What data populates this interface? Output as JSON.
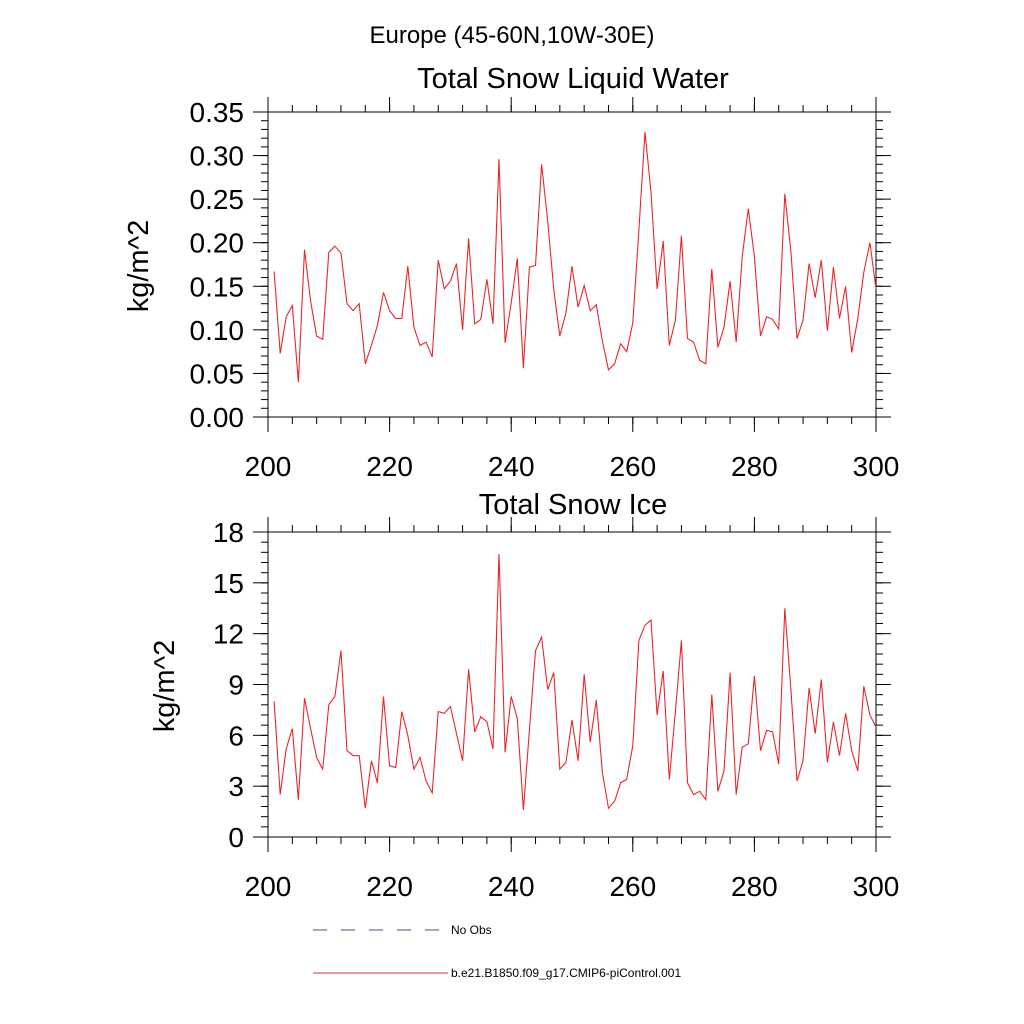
{
  "figure_title": "Europe (45-60N,10W-30E)",
  "legend": {
    "items": [
      {
        "label": "No Obs",
        "style": "dashed",
        "color": "#45507a"
      },
      {
        "label": "b.e21.B1850.f09_g17.CMIP6-piControl.001",
        "style": "solid",
        "color": "#e8262a"
      }
    ]
  },
  "chart_data": [
    {
      "type": "line",
      "title": "Total Snow Liquid Water",
      "xlabel": "",
      "ylabel": "kg/m^2",
      "xlim": [
        200,
        300
      ],
      "ylim": [
        0,
        0.35
      ],
      "xticks": [
        200,
        220,
        240,
        260,
        280,
        300
      ],
      "xtick_labels": [
        "200",
        "220",
        "240",
        "260",
        "280",
        "300"
      ],
      "yticks": [
        0,
        0.05,
        0.1,
        0.15,
        0.2,
        0.25,
        0.3,
        0.35
      ],
      "ytick_labels": [
        "0.00",
        "0.05",
        "0.10",
        "0.15",
        "0.20",
        "0.25",
        "0.30",
        "0.35"
      ],
      "series": [
        {
          "color": "#e8262a",
          "x": [
            201,
            202,
            203,
            204,
            205,
            206,
            207,
            208,
            209,
            210,
            211,
            212,
            213,
            214,
            215,
            216,
            217,
            218,
            219,
            220,
            221,
            222,
            223,
            224,
            225,
            226,
            227,
            228,
            229,
            230,
            231,
            232,
            233,
            234,
            235,
            236,
            237,
            238,
            239,
            240,
            241,
            242,
            243,
            244,
            245,
            246,
            247,
            248,
            249,
            250,
            251,
            252,
            253,
            254,
            255,
            256,
            257,
            258,
            259,
            260,
            261,
            262,
            263,
            264,
            265,
            266,
            267,
            268,
            269,
            270,
            271,
            272,
            273,
            274,
            275,
            276,
            277,
            278,
            279,
            280,
            281,
            282,
            283,
            284,
            285,
            286,
            287,
            288,
            289,
            290,
            291,
            292,
            293,
            294,
            295,
            296,
            297,
            298,
            299,
            300
          ],
          "y": [
            0.167,
            0.073,
            0.115,
            0.128,
            0.04,
            0.192,
            0.133,
            0.093,
            0.089,
            0.189,
            0.196,
            0.188,
            0.13,
            0.122,
            0.13,
            0.061,
            0.082,
            0.105,
            0.143,
            0.122,
            0.113,
            0.113,
            0.173,
            0.103,
            0.082,
            0.086,
            0.069,
            0.18,
            0.147,
            0.156,
            0.176,
            0.1,
            0.205,
            0.107,
            0.112,
            0.158,
            0.107,
            0.296,
            0.085,
            0.131,
            0.182,
            0.056,
            0.172,
            0.174,
            0.29,
            0.225,
            0.146,
            0.093,
            0.119,
            0.173,
            0.126,
            0.151,
            0.122,
            0.129,
            0.087,
            0.054,
            0.061,
            0.084,
            0.075,
            0.108,
            0.215,
            0.327,
            0.258,
            0.147,
            0.202,
            0.082,
            0.111,
            0.208,
            0.09,
            0.086,
            0.065,
            0.061,
            0.17,
            0.08,
            0.103,
            0.156,
            0.086,
            0.184,
            0.239,
            0.184,
            0.093,
            0.115,
            0.112,
            0.101,
            0.256,
            0.19,
            0.09,
            0.111,
            0.176,
            0.137,
            0.18,
            0.099,
            0.172,
            0.113,
            0.15,
            0.074,
            0.113,
            0.166,
            0.2,
            0.147
          ]
        }
      ]
    },
    {
      "type": "line",
      "title": "Total Snow Ice",
      "xlabel": "",
      "ylabel": "kg/m^2",
      "xlim": [
        200,
        300
      ],
      "ylim": [
        0,
        18
      ],
      "xticks": [
        200,
        220,
        240,
        260,
        280,
        300
      ],
      "xtick_labels": [
        "200",
        "220",
        "240",
        "260",
        "280",
        "300"
      ],
      "yticks": [
        0,
        3,
        6,
        9,
        12,
        15,
        18
      ],
      "ytick_labels": [
        "0",
        "3",
        "6",
        "9",
        "12",
        "15",
        "18"
      ],
      "series": [
        {
          "color": "#e8262a",
          "x": [
            201,
            202,
            203,
            204,
            205,
            206,
            207,
            208,
            209,
            210,
            211,
            212,
            213,
            214,
            215,
            216,
            217,
            218,
            219,
            220,
            221,
            222,
            223,
            224,
            225,
            226,
            227,
            228,
            229,
            230,
            231,
            232,
            233,
            234,
            235,
            236,
            237,
            238,
            239,
            240,
            241,
            242,
            243,
            244,
            245,
            246,
            247,
            248,
            249,
            250,
            251,
            252,
            253,
            254,
            255,
            256,
            257,
            258,
            259,
            260,
            261,
            262,
            263,
            264,
            265,
            266,
            267,
            268,
            269,
            270,
            271,
            272,
            273,
            274,
            275,
            276,
            277,
            278,
            279,
            280,
            281,
            282,
            283,
            284,
            285,
            286,
            287,
            288,
            289,
            290,
            291,
            292,
            293,
            294,
            295,
            296,
            297,
            298,
            299,
            300
          ],
          "y": [
            8.0,
            2.5,
            5.2,
            6.4,
            2.2,
            8.2,
            6.4,
            4.7,
            4.0,
            7.8,
            8.3,
            11.0,
            5.1,
            4.8,
            4.8,
            1.7,
            4.5,
            3.2,
            8.3,
            4.2,
            4.1,
            7.4,
            6.0,
            4.0,
            4.7,
            3.3,
            2.6,
            7.4,
            7.3,
            7.7,
            6.1,
            4.5,
            9.9,
            6.2,
            7.1,
            6.8,
            5.2,
            16.7,
            5.0,
            8.3,
            7.0,
            1.6,
            6.3,
            11.0,
            11.8,
            8.7,
            9.7,
            4.0,
            4.4,
            6.9,
            4.5,
            9.6,
            5.6,
            8.1,
            3.8,
            1.7,
            2.1,
            3.2,
            3.4,
            5.4,
            11.6,
            12.5,
            12.8,
            7.2,
            9.8,
            3.4,
            7.4,
            11.6,
            3.2,
            2.5,
            2.7,
            2.2,
            8.4,
            2.7,
            3.9,
            9.7,
            2.5,
            5.3,
            5.5,
            9.5,
            5.1,
            6.3,
            6.2,
            4.3,
            13.5,
            8.7,
            3.3,
            4.5,
            8.8,
            6.1,
            9.3,
            4.4,
            6.8,
            4.8,
            7.3,
            5.1,
            3.9,
            8.9,
            7.2,
            6.5
          ]
        }
      ]
    }
  ]
}
